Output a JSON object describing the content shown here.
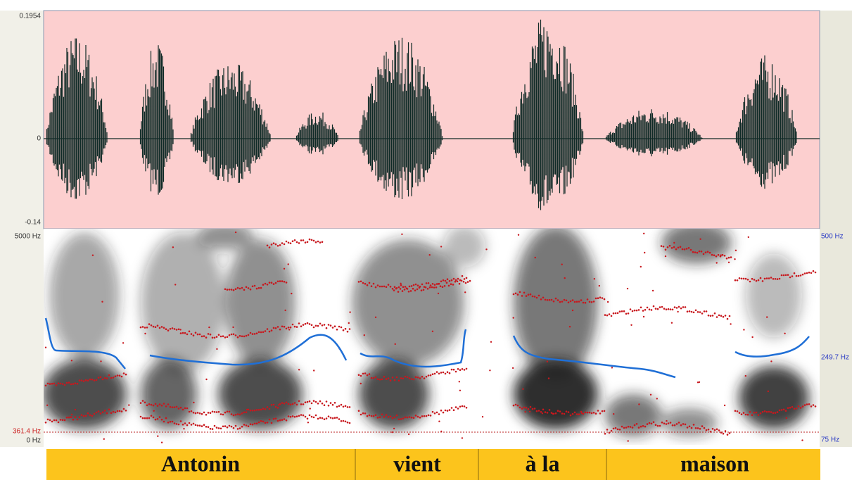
{
  "waveform": {
    "y_max": "0.1954",
    "y_zero": "0",
    "y_min": "-0.14"
  },
  "spectrogram": {
    "freq_max": "5000 Hz",
    "freq_min": "0 Hz",
    "cursor_freq": "361.4 Hz",
    "pitch_max": "500 Hz",
    "pitch_mid": "249.7 Hz",
    "pitch_min": "75 Hz"
  },
  "tier": {
    "words": [
      "Antonin",
      "vient",
      "à la",
      "maison"
    ]
  }
}
